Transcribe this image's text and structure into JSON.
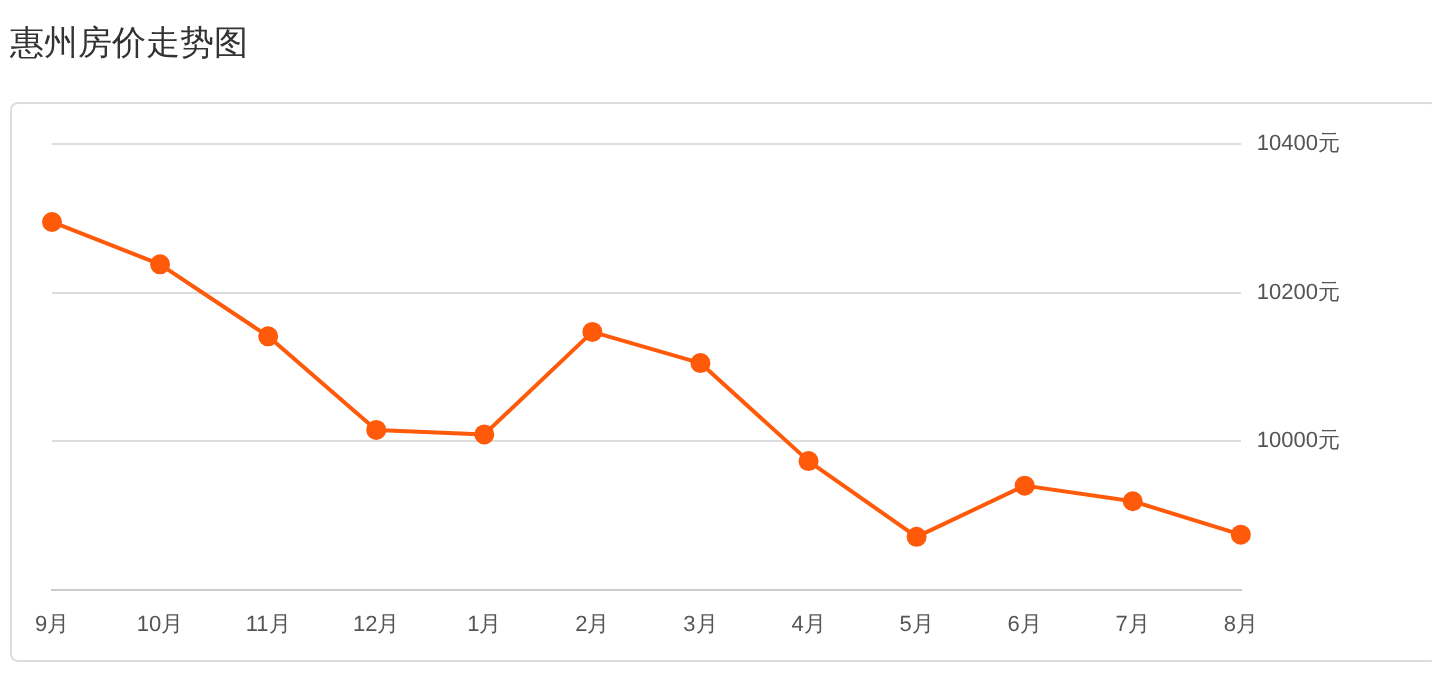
{
  "chart_data": {
    "type": "line",
    "title": "惠州房价走势图",
    "categories": [
      "9月",
      "10月",
      "11月",
      "12月",
      "1月",
      "2月",
      "3月",
      "4月",
      "5月",
      "6月",
      "7月",
      "8月"
    ],
    "series": [
      {
        "color": "#ff5a0a",
        "values": [
          10295,
          10238,
          10141,
          10015,
          10009,
          10147,
          10105,
          9973,
          9871,
          9940,
          9919,
          9874
        ]
      }
    ],
    "ylim": [
      9800,
      10400
    ],
    "yticks": [
      {
        "value": 9800,
        "label": null
      },
      {
        "value": 10000,
        "label": "10000元"
      },
      {
        "value": 10200,
        "label": "10200元"
      },
      {
        "value": 10400,
        "label": "10400元"
      }
    ],
    "grid": "y",
    "legend": false,
    "marker": "circle",
    "line_style": "solid"
  }
}
